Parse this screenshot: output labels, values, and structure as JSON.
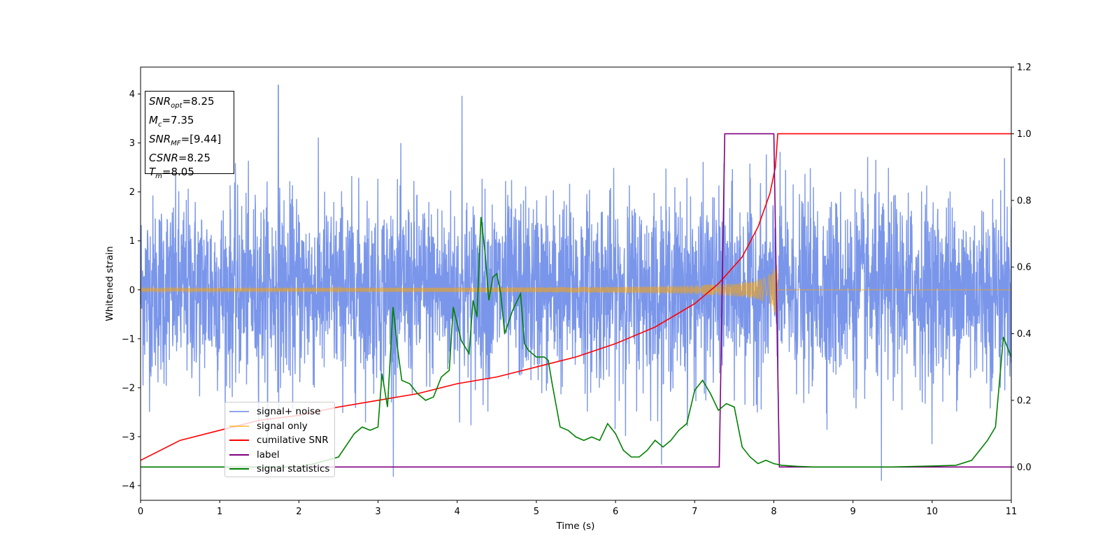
{
  "chart_data": {
    "type": "line",
    "xlabel": "Time (s)",
    "ylabel": "Whitened strain",
    "xlim": [
      0,
      11
    ],
    "ylim_left": [
      -4.3,
      4.55
    ],
    "ylim_right": [
      -0.1,
      1.2
    ],
    "x_ticks": [
      "0",
      "1",
      "2",
      "3",
      "4",
      "5",
      "6",
      "7",
      "8",
      "9",
      "10",
      "11"
    ],
    "y_ticks_left": [
      "−4",
      "−3",
      "−2",
      "−1",
      "0",
      "1",
      "2",
      "3",
      "4"
    ],
    "y_ticks_right": [
      "0.0",
      "0.2",
      "0.4",
      "0.6",
      "0.8",
      "1.0",
      "1.2"
    ],
    "legend_location": "lower-left",
    "annotation": {
      "snr_opt": "=8.25",
      "mc": "=7.35",
      "snr_mf": "=[9.44]",
      "csnr": "=8.25",
      "tm": "=8.05"
    },
    "series": [
      {
        "name": "signal+ noise",
        "color": "#4169e1",
        "axis": "left",
        "noise_std": 0.95,
        "peaks": [
          [
            1.74,
            4.18
          ],
          [
            4.06,
            3.96
          ],
          [
            9.36,
            -3.9
          ]
        ]
      },
      {
        "name": "signal only",
        "color": "#ffa500",
        "axis": "left",
        "chirp_start_amplitude": 0.02,
        "chirp_end_amplitude": 0.62,
        "chirp_end_time": 8.05
      },
      {
        "name": "cumilative SNR",
        "color": "#ff0000",
        "axis": "right",
        "x": [
          0,
          0.5,
          1,
          1.5,
          2,
          2.5,
          3,
          3.5,
          4,
          4.5,
          5,
          5.5,
          6,
          6.5,
          7,
          7.3,
          7.6,
          7.8,
          7.95,
          8.02,
          8.05,
          11
        ],
        "y": [
          0.02,
          0.08,
          0.11,
          0.14,
          0.155,
          0.18,
          0.2,
          0.22,
          0.25,
          0.27,
          0.3,
          0.33,
          0.37,
          0.42,
          0.49,
          0.55,
          0.63,
          0.72,
          0.82,
          0.9,
          1.0,
          1.0
        ]
      },
      {
        "name": "label",
        "color": "#800080",
        "axis": "right",
        "x": [
          0,
          7.31,
          7.38,
          8.0,
          8.07,
          11
        ],
        "y": [
          0,
          0,
          1,
          1,
          0,
          0
        ]
      },
      {
        "name": "signal statistics",
        "color": "#008000",
        "axis": "right",
        "x": [
          0,
          2.0,
          2.2,
          2.5,
          2.7,
          2.8,
          2.9,
          3.0,
          3.05,
          3.12,
          3.19,
          3.25,
          3.3,
          3.4,
          3.5,
          3.6,
          3.7,
          3.8,
          3.9,
          3.95,
          4.05,
          4.15,
          4.2,
          4.25,
          4.3,
          4.35,
          4.4,
          4.45,
          4.5,
          4.55,
          4.6,
          4.7,
          4.8,
          4.85,
          4.9,
          5.0,
          5.1,
          5.15,
          5.2,
          5.3,
          5.4,
          5.5,
          5.6,
          5.7,
          5.8,
          5.9,
          6.0,
          6.1,
          6.2,
          6.3,
          6.4,
          6.5,
          6.6,
          6.7,
          6.8,
          6.9,
          7.0,
          7.1,
          7.2,
          7.3,
          7.4,
          7.5,
          7.6,
          7.7,
          7.8,
          7.9,
          8.0,
          8.1,
          8.3,
          8.5,
          9.0,
          9.5,
          10.0,
          10.3,
          10.5,
          10.7,
          10.8,
          10.9,
          11.0
        ],
        "y": [
          0,
          0,
          0.01,
          0.03,
          0.1,
          0.12,
          0.11,
          0.12,
          0.28,
          0.18,
          0.48,
          0.35,
          0.26,
          0.25,
          0.22,
          0.2,
          0.21,
          0.27,
          0.29,
          0.48,
          0.38,
          0.34,
          0.5,
          0.45,
          0.75,
          0.65,
          0.5,
          0.57,
          0.58,
          0.52,
          0.4,
          0.47,
          0.52,
          0.37,
          0.35,
          0.33,
          0.33,
          0.32,
          0.25,
          0.12,
          0.11,
          0.09,
          0.08,
          0.09,
          0.08,
          0.13,
          0.1,
          0.05,
          0.03,
          0.03,
          0.05,
          0.08,
          0.06,
          0.08,
          0.11,
          0.13,
          0.23,
          0.26,
          0.22,
          0.17,
          0.19,
          0.18,
          0.06,
          0.03,
          0.01,
          0.02,
          0.01,
          0.005,
          0.002,
          0.0,
          0.0,
          0.0,
          0.003,
          0.005,
          0.02,
          0.08,
          0.12,
          0.39,
          0.33
        ]
      }
    ]
  }
}
